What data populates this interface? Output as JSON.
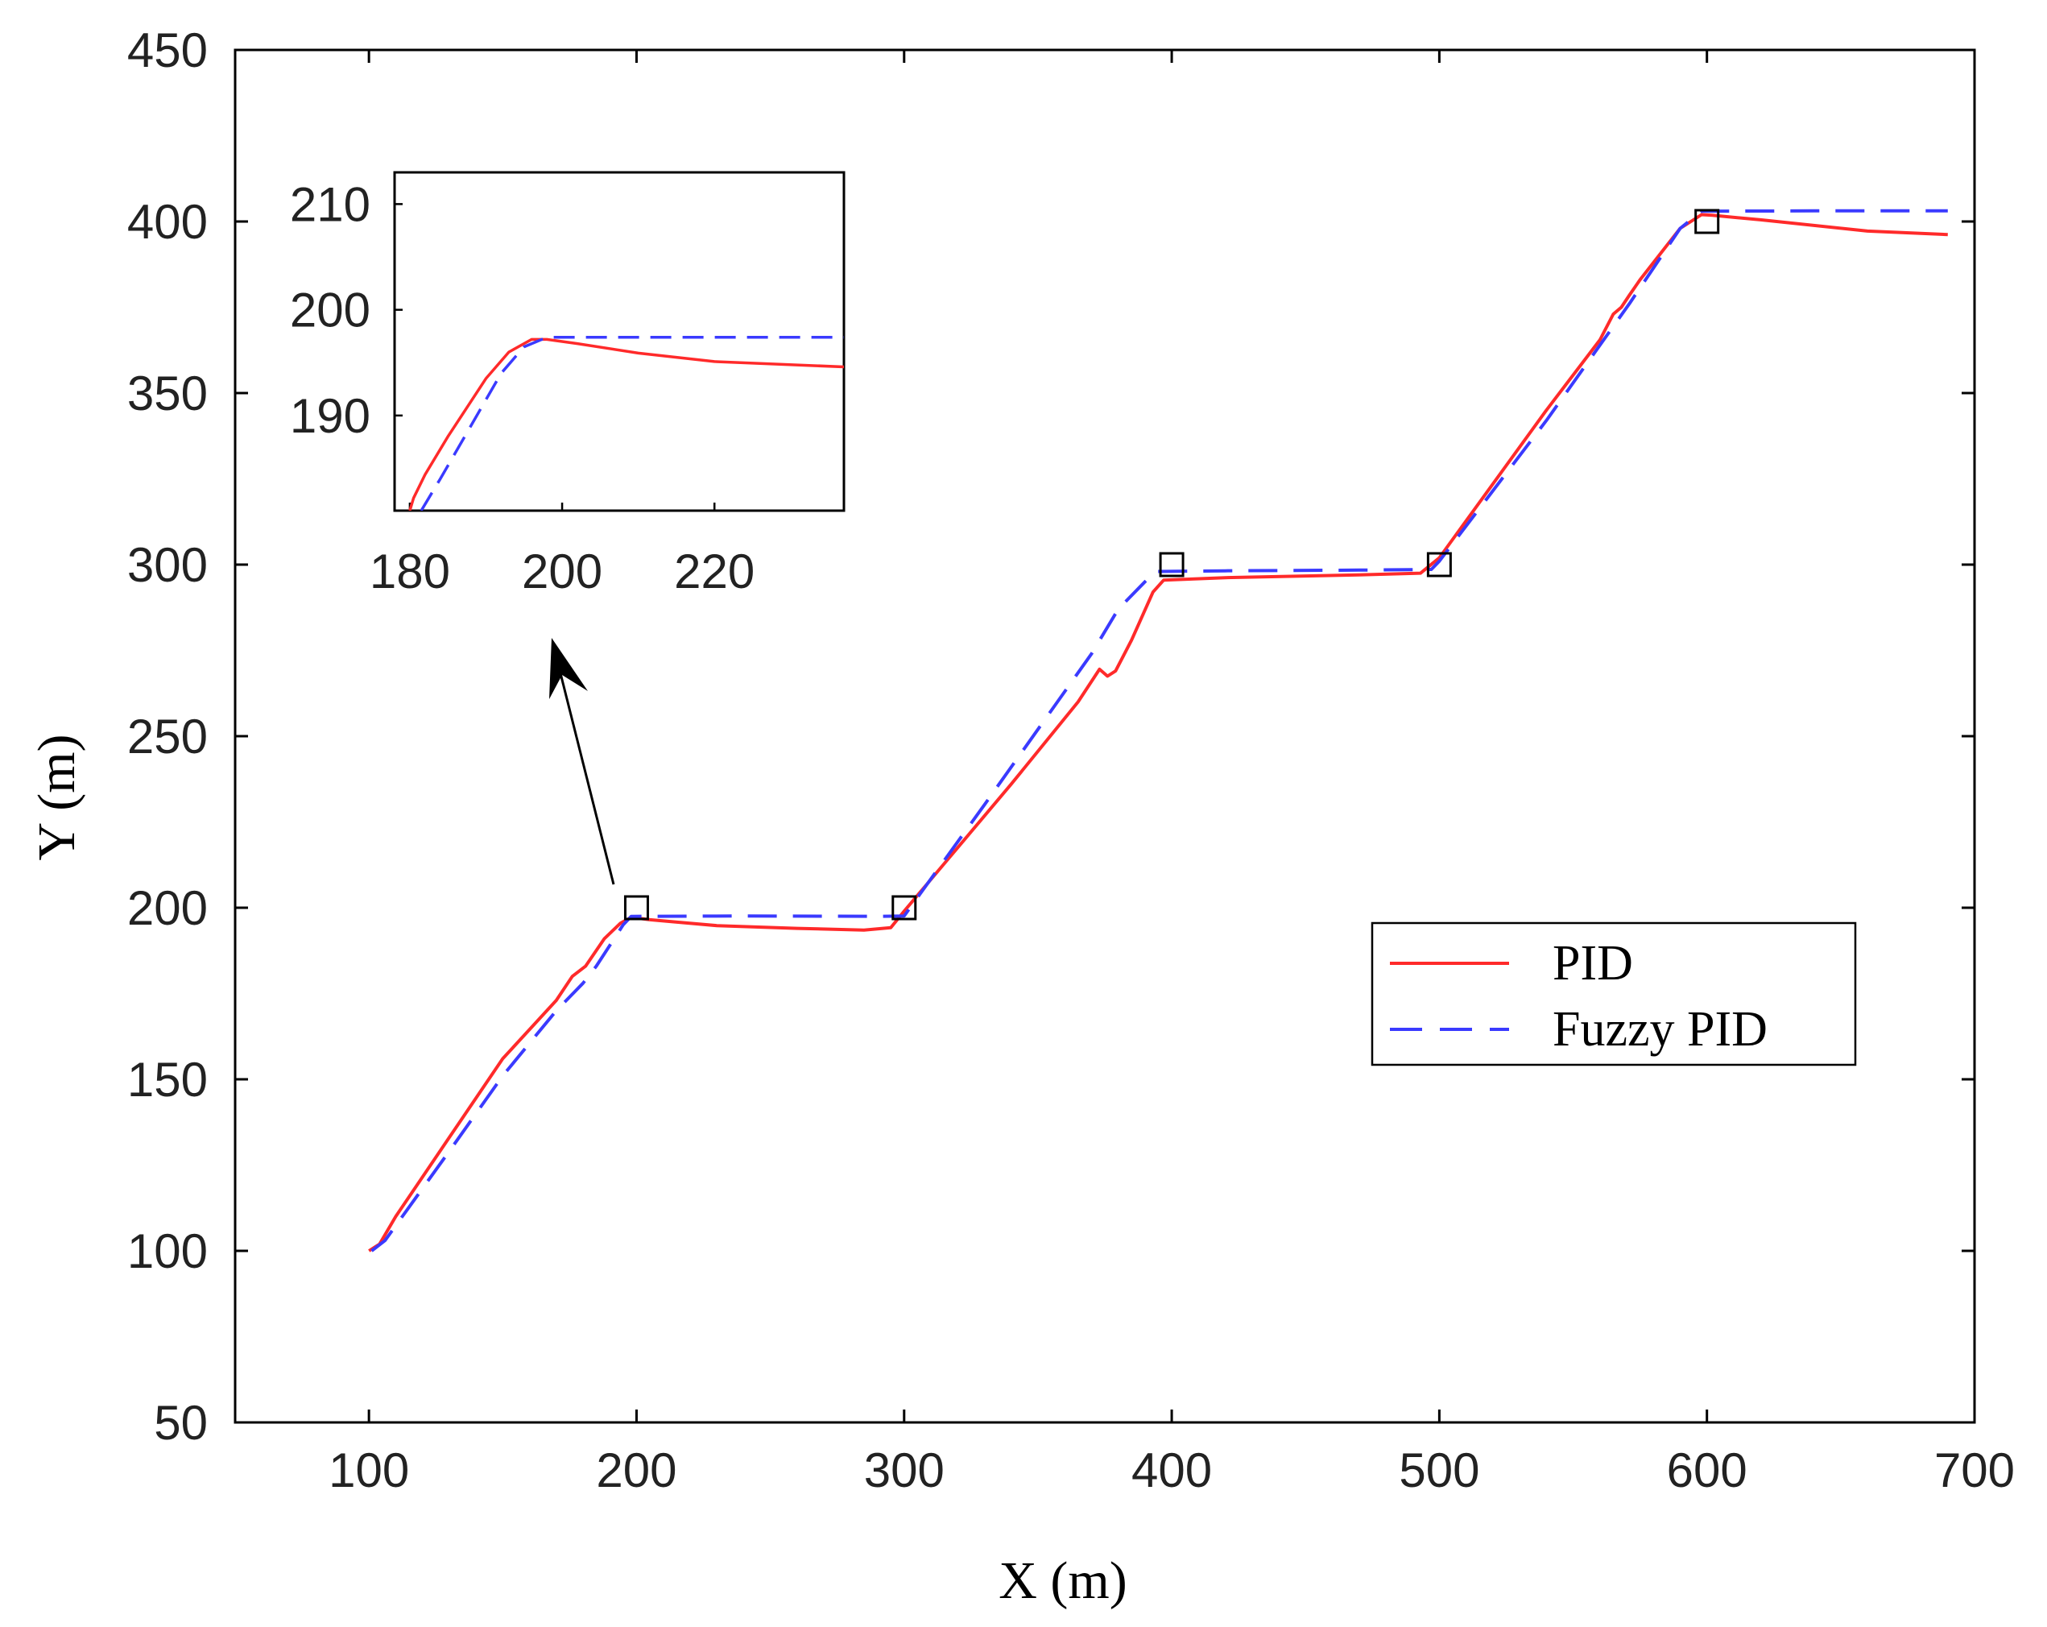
{
  "chart_data": {
    "type": "line",
    "xlabel": "X (m)",
    "ylabel": "Y (m)",
    "xlim": [
      50,
      700
    ],
    "ylim": [
      50,
      450
    ],
    "xticks": [
      100,
      200,
      300,
      400,
      500,
      600,
      700
    ],
    "yticks": [
      50,
      100,
      150,
      200,
      250,
      300,
      350,
      400,
      450
    ],
    "legend_position": "right",
    "series": [
      {
        "name": "PID",
        "color": "#ff2a2a",
        "style": "solid",
        "points": [
          [
            100,
            100
          ],
          [
            104,
            102
          ],
          [
            110,
            110
          ],
          [
            130,
            133
          ],
          [
            150,
            156
          ],
          [
            170,
            173
          ],
          [
            176,
            180
          ],
          [
            181,
            183
          ],
          [
            188,
            191
          ],
          [
            194,
            195.5
          ],
          [
            198,
            197.2
          ],
          [
            205,
            196.5
          ],
          [
            230,
            194.8
          ],
          [
            260,
            194
          ],
          [
            285,
            193.5
          ],
          [
            295,
            194.2
          ],
          [
            300,
            199
          ],
          [
            340,
            236
          ],
          [
            365,
            260
          ],
          [
            373,
            269.5
          ],
          [
            376,
            267.5
          ],
          [
            379,
            269
          ],
          [
            385,
            278
          ],
          [
            393,
            292
          ],
          [
            397,
            295.5
          ],
          [
            420,
            296.2
          ],
          [
            470,
            297
          ],
          [
            493,
            297.5
          ],
          [
            500,
            302
          ],
          [
            540,
            345
          ],
          [
            560,
            365.5
          ],
          [
            565,
            373
          ],
          [
            568,
            375
          ],
          [
            571,
            378.5
          ],
          [
            575,
            383
          ],
          [
            590,
            398
          ],
          [
            598,
            402
          ],
          [
            602,
            401.8
          ],
          [
            620,
            400.5
          ],
          [
            660,
            397.2
          ],
          [
            690,
            396.2
          ]
        ]
      },
      {
        "name": "Fuzzy PID",
        "color": "#3a3aff",
        "style": "dashed",
        "points": [
          [
            101,
            100
          ],
          [
            106,
            103
          ],
          [
            130,
            129
          ],
          [
            150,
            151
          ],
          [
            170,
            170
          ],
          [
            180,
            178
          ],
          [
            185,
            183
          ],
          [
            195,
            195
          ],
          [
            198,
            197.5
          ],
          [
            240,
            197.6
          ],
          [
            290,
            197.5
          ],
          [
            300,
            197.6
          ],
          [
            330,
            230
          ],
          [
            370,
            274
          ],
          [
            380,
            287
          ],
          [
            390,
            295
          ],
          [
            394,
            298
          ],
          [
            420,
            298.2
          ],
          [
            470,
            298.4
          ],
          [
            497,
            298.6
          ],
          [
            500,
            301
          ],
          [
            540,
            342
          ],
          [
            571,
            376
          ],
          [
            590,
            398
          ],
          [
            598,
            403
          ],
          [
            640,
            403.1
          ],
          [
            690,
            403.1
          ]
        ]
      }
    ],
    "waypoints": [
      [
        200,
        200
      ],
      [
        300,
        200
      ],
      [
        400,
        300
      ],
      [
        500,
        300
      ],
      [
        600,
        400
      ]
    ],
    "inset": {
      "xlim": [
        178,
        237
      ],
      "ylim": [
        181,
        213
      ],
      "xticks": [
        180,
        200,
        220
      ],
      "yticks": [
        190,
        200,
        210
      ],
      "series": [
        {
          "name": "PID",
          "points": [
            [
              180,
              181
            ],
            [
              180.5,
              182.2
            ],
            [
              182,
              184.4
            ],
            [
              185,
              188
            ],
            [
              190,
              193.5
            ],
            [
              193,
              196
            ],
            [
              196,
              197.2
            ],
            [
              198,
              197.2
            ],
            [
              202,
              196.8
            ],
            [
              210,
              195.9
            ],
            [
              220,
              195.1
            ],
            [
              237,
              194.6
            ]
          ]
        },
        {
          "name": "Fuzzy PID",
          "points": [
            [
              181.5,
              181
            ],
            [
              184,
              184
            ],
            [
              188,
              189
            ],
            [
              192,
              194
            ],
            [
              195,
              196.5
            ],
            [
              198,
              197.4
            ],
            [
              210,
              197.4
            ],
            [
              237,
              197.4
            ]
          ]
        }
      ]
    }
  }
}
